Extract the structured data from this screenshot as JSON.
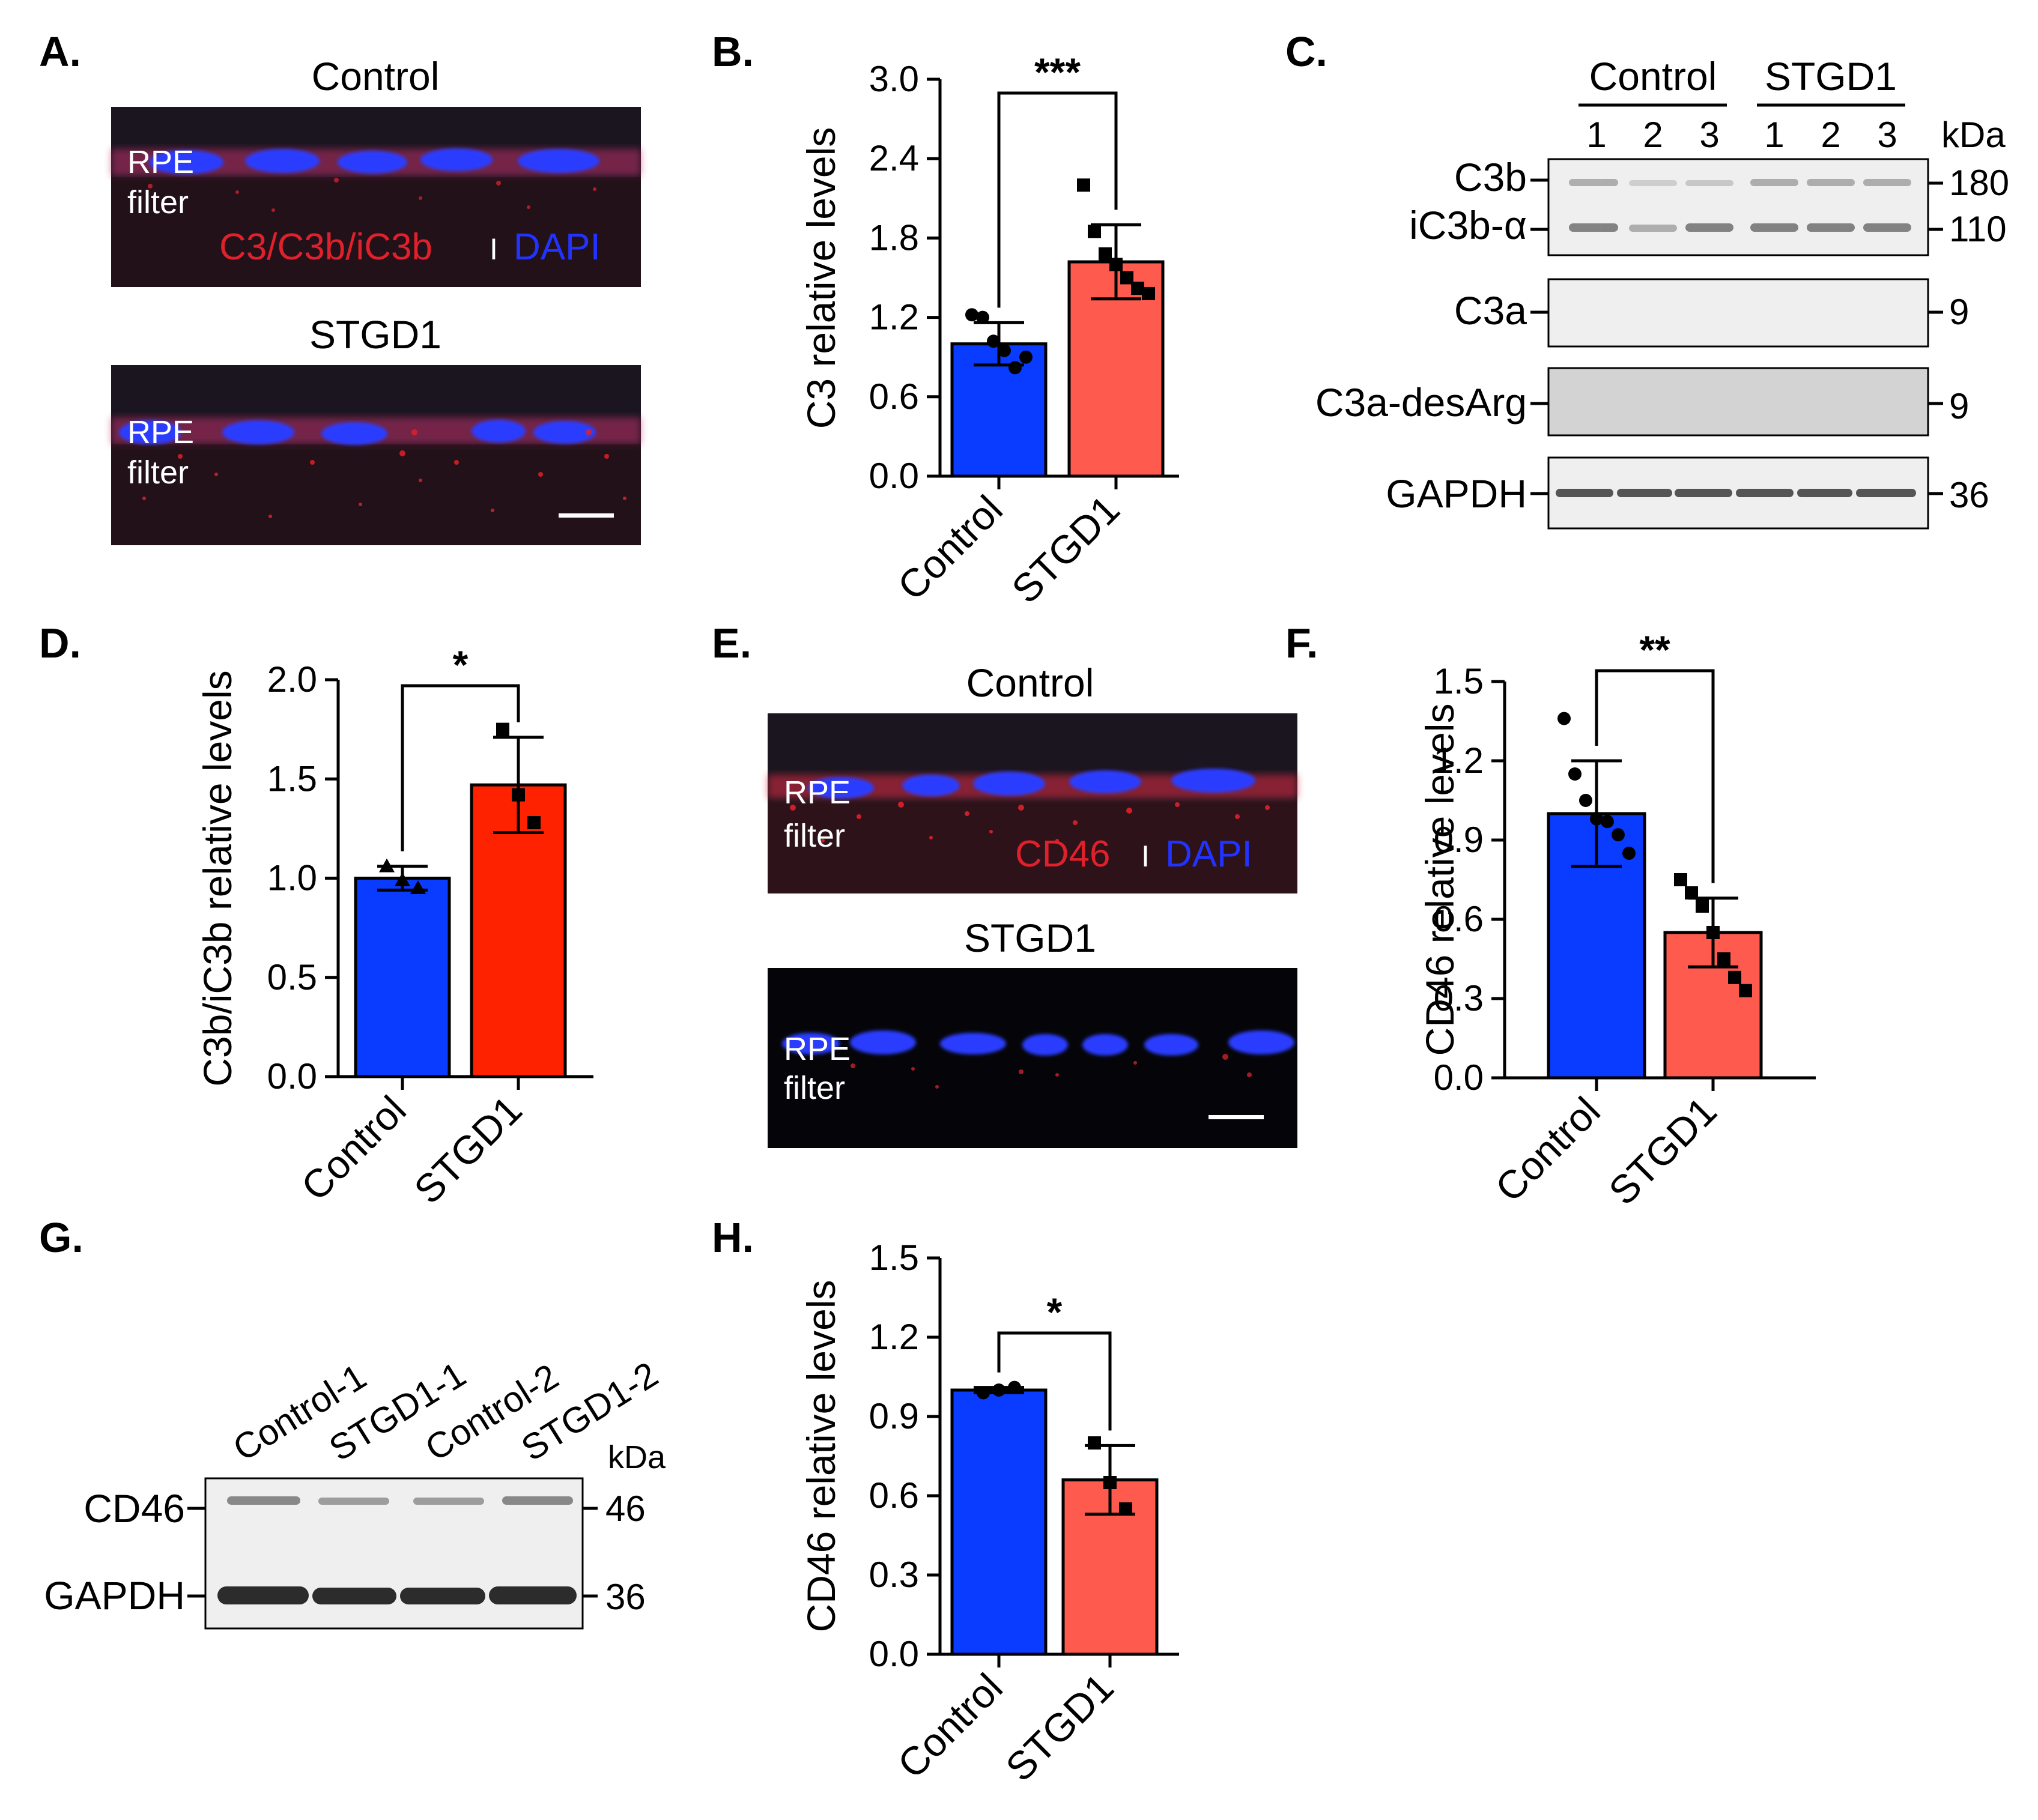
{
  "panels": {
    "A": {
      "label": "A.",
      "title_top": "Control",
      "title_bottom": "STGD1",
      "rpe": "RPE",
      "filter": "filter",
      "stain_red": "C3/C3b/iC3b",
      "sep": "I",
      "stain_blue": "DAPI"
    },
    "B": {
      "label": "B."
    },
    "C": {
      "label": "C.",
      "group_control": "Control",
      "group_stgd1": "STGD1",
      "lanes": [
        "1",
        "2",
        "3",
        "1",
        "2",
        "3"
      ],
      "kda": "kDa",
      "bands": [
        {
          "name": "C3b",
          "kda": "180"
        },
        {
          "name": "iC3b-α",
          "kda": "110"
        },
        {
          "name": "C3a",
          "kda": "9"
        },
        {
          "name": "C3a-desArg",
          "kda": "9"
        },
        {
          "name": "GAPDH",
          "kda": "36"
        }
      ]
    },
    "D": {
      "label": "D."
    },
    "E": {
      "label": "E.",
      "title_top": "Control",
      "title_bottom": "STGD1",
      "rpe": "RPE",
      "filter": "filter",
      "stain_red": "CD46",
      "sep": "I",
      "stain_blue": "DAPI"
    },
    "F": {
      "label": "F."
    },
    "G": {
      "label": "G.",
      "lanes": [
        "Control-1",
        "STGD1-1",
        "Control-2",
        "STGD1-2"
      ],
      "kda": "kDa",
      "bands": [
        {
          "name": "CD46",
          "kda": "46"
        },
        {
          "name": "GAPDH",
          "kda": "36"
        }
      ]
    },
    "H": {
      "label": "H."
    }
  },
  "colors": {
    "control_bar": "#0A3CFF",
    "stgd1_bar_light": "#FF5A4E",
    "stgd1_bar_red": "#FF2200",
    "micro_bg": "#1b1520",
    "rpe_red": "#e0202a",
    "dapi_blue": "#2233ff"
  },
  "chart_data": [
    {
      "panel": "B",
      "type": "bar",
      "categories": [
        "Control",
        "STGD1"
      ],
      "values": [
        1.0,
        1.62
      ],
      "errors": [
        0.16,
        0.28
      ],
      "points": [
        [
          1.22,
          1.2,
          1.02,
          0.95,
          0.82,
          0.9
        ],
        [
          2.2,
          1.85,
          1.68,
          1.6,
          1.5,
          1.42,
          1.38
        ]
      ],
      "point_shapes": [
        "circle",
        "square"
      ],
      "ylabel": "C3 relative levels",
      "ylim": [
        0,
        3.0
      ],
      "yticks": [
        "0.0",
        "0.6",
        "1.2",
        "1.8",
        "2.4",
        "3.0"
      ],
      "significance": "***"
    },
    {
      "panel": "D",
      "type": "bar",
      "categories": [
        "Control",
        "STGD1"
      ],
      "values": [
        1.0,
        1.47
      ],
      "errors": [
        0.06,
        0.24
      ],
      "points": [
        [
          1.06,
          0.99,
          0.95
        ],
        [
          1.75,
          1.42,
          1.28
        ]
      ],
      "point_shapes": [
        "triangle",
        "square"
      ],
      "ylabel": "C3b/iC3b relative levels",
      "ylim": [
        0,
        2.0
      ],
      "yticks": [
        "0.0",
        "0.5",
        "1.0",
        "1.5",
        "2.0"
      ],
      "significance": "*"
    },
    {
      "panel": "F",
      "type": "bar",
      "categories": [
        "Control",
        "STGD1"
      ],
      "values": [
        1.0,
        0.55
      ],
      "errors": [
        0.2,
        0.13
      ],
      "points": [
        [
          1.36,
          1.15,
          1.05,
          0.98,
          0.97,
          0.92,
          0.85
        ],
        [
          0.75,
          0.7,
          0.65,
          0.55,
          0.45,
          0.38,
          0.33
        ]
      ],
      "point_shapes": [
        "circle",
        "square"
      ],
      "ylabel": "CD46 relative levels",
      "ylim": [
        0,
        1.5
      ],
      "yticks": [
        "0.0",
        "0.3",
        "0.6",
        "0.9",
        "1.2",
        "1.5"
      ],
      "significance": "**"
    },
    {
      "panel": "H",
      "type": "bar",
      "categories": [
        "Control",
        "STGD1"
      ],
      "values": [
        1.0,
        0.66
      ],
      "errors": [
        0.01,
        0.13
      ],
      "points": [
        [
          0.99,
          1.0,
          1.01
        ],
        [
          0.8,
          0.65,
          0.55
        ]
      ],
      "point_shapes": [
        "circle",
        "square"
      ],
      "ylabel": "CD46 relative levels",
      "ylim": [
        0,
        1.5
      ],
      "yticks": [
        "0.0",
        "0.3",
        "0.6",
        "0.9",
        "1.2",
        "1.5"
      ],
      "significance": "*"
    }
  ]
}
